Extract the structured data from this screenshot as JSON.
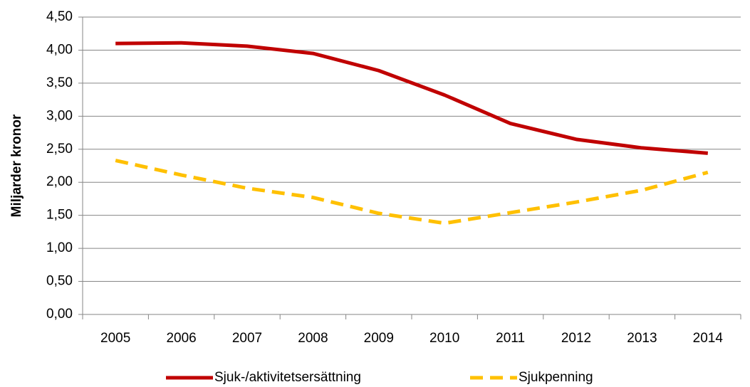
{
  "chart_data": {
    "type": "line",
    "y_label": "Miljarder kronor",
    "categories": [
      "2005",
      "2006",
      "2007",
      "2008",
      "2009",
      "2010",
      "2011",
      "2012",
      "2013",
      "2014"
    ],
    "series": [
      {
        "name": "Sjuk-/aktivitetsersättning",
        "color": "#c00000",
        "dash": false,
        "values": [
          4.1,
          4.11,
          4.06,
          3.95,
          3.69,
          3.32,
          2.89,
          2.65,
          2.52,
          2.44
        ]
      },
      {
        "name": "Sjukpenning",
        "color": "#ffc000",
        "dash": true,
        "values": [
          2.33,
          2.11,
          1.91,
          1.77,
          1.53,
          1.38,
          1.54,
          1.7,
          1.88,
          2.15
        ]
      }
    ],
    "ylim": [
      0,
      4.5
    ],
    "yticks": [
      {
        "value": 0,
        "label": "0,00"
      },
      {
        "value": 0.5,
        "label": "0,50"
      },
      {
        "value": 1,
        "label": "1,00"
      },
      {
        "value": 1.5,
        "label": "1,50"
      },
      {
        "value": 2,
        "label": "2,00"
      },
      {
        "value": 2.5,
        "label": "2,50"
      },
      {
        "value": 3,
        "label": "3,00"
      },
      {
        "value": 3.5,
        "label": "3,50"
      },
      {
        "value": 4,
        "label": "4,00"
      },
      {
        "value": 4.5,
        "label": "4,50"
      }
    ],
    "grid": true,
    "legend": "bottom"
  }
}
